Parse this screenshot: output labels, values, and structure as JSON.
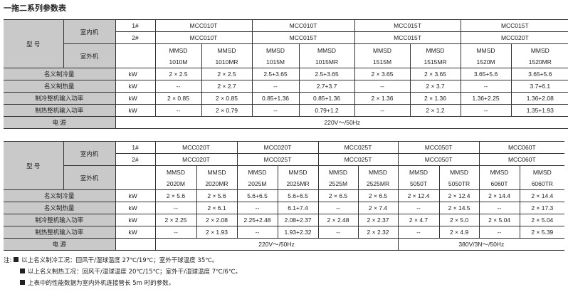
{
  "title": "一拖二系列参数表",
  "labels": {
    "model": "型  号",
    "indoor": "室内机",
    "outdoor": "室外机",
    "unit1": "1#",
    "unit2": "2#",
    "rows": [
      "名义制冷量",
      "名义制热量",
      "制冷整机输入功率",
      "制热整机输入功率"
    ],
    "unit": "kW",
    "power": "电  源"
  },
  "tables": [
    {
      "indoor1": [
        "MCC010T",
        "MCC010T",
        "MCC015T",
        "MCC015T"
      ],
      "indoor2": [
        "MCC010T",
        "MCC015T",
        "MCC015T",
        "MCC020T"
      ],
      "outdoor": [
        [
          "MMSD",
          "1010M"
        ],
        [
          "MMSD",
          "1010MR"
        ],
        [
          "MMSD",
          "1015M"
        ],
        [
          "MMSD",
          "1015MR"
        ],
        [
          "MMSD",
          "1515M"
        ],
        [
          "MMSD",
          "1515MR"
        ],
        [
          "MMSD",
          "1520M"
        ],
        [
          "MMSD",
          "1520MR"
        ]
      ],
      "values": [
        [
          "2 × 2.5",
          "2 × 2.5",
          "2.5+3.65",
          "2.5+3.65",
          "2 × 3.65",
          "2 × 3.65",
          "3.65+5.6",
          "3.65+5.6"
        ],
        [
          "--",
          "2 × 2.7",
          "--",
          "2.7+3.7",
          "--",
          "2 × 3.7",
          "--",
          "3.7+6.1"
        ],
        [
          "2 × 0.85",
          "2 × 0.85",
          "0.85+1.36",
          "0.85+1.36",
          "2 × 1.36",
          "2 × 1.36",
          "1.36+2.25",
          "1.36+2.08"
        ],
        [
          "--",
          "2 × 0.79",
          "--",
          "0.79+1.2",
          "--",
          "2 × 1.2",
          "--",
          "1.35+1.93"
        ]
      ],
      "power": [
        "220V～/50Hz"
      ]
    },
    {
      "indoor1": [
        "MCC020T",
        "MCC020T",
        "MCC025T",
        "MCC050T",
        "MCC060T"
      ],
      "indoor2": [
        "MCC020T",
        "MCC025T",
        "MCC025T",
        "MCC050T",
        "MCC060T"
      ],
      "outdoor": [
        [
          "MMSD",
          "2020M"
        ],
        [
          "MMSD",
          "2020MR"
        ],
        [
          "MMSD",
          "2025M"
        ],
        [
          "MMSD",
          "2025MR"
        ],
        [
          "MMSD",
          "2525M"
        ],
        [
          "MMSD",
          "2525MR"
        ],
        [
          "MMSD",
          "5050T"
        ],
        [
          "MMSD",
          "5050TR"
        ],
        [
          "MMSD",
          "6060T"
        ],
        [
          "MMSD",
          "6060TR"
        ]
      ],
      "values": [
        [
          "2 × 5.6",
          "2 × 5.6",
          "5.6+6.5",
          "5.6+6.5",
          "2 × 6.5",
          "2 × 6.5",
          "2 × 12.4",
          "2 × 12.4",
          "2 × 14.4",
          "2 × 14.4"
        ],
        [
          "--",
          "2 × 6.1",
          "--",
          "6.1+7.4",
          "--",
          "2 × 7.4",
          "--",
          "2 × 14.5",
          "--",
          "2 × 17.3"
        ],
        [
          "2 × 2.25",
          "2 × 2.08",
          "2.25+2.48",
          "2.08+2.37",
          "2 × 2.48",
          "2 × 2.37",
          "2 × 4.7",
          "2 × 5.0",
          "2 × 5.04",
          "2 × 5.04"
        ],
        [
          "--",
          "2 × 1.93",
          "--",
          "1.93+2.32",
          "--",
          "2 × 2.32",
          "--",
          "2 × 4.9",
          "--",
          "2 × 5.39"
        ]
      ],
      "power": [
        "220V～/50Hz",
        "380V/3N～/50Hz"
      ]
    }
  ],
  "notes": {
    "prefix": "注:",
    "items": [
      "以上名义制冷工况：回风干/湿球温度 27℃/19℃；室外干球温度 35℃。",
      "以上名义制热工况：回风干/湿球温度 20℃/15℃；室外干/湿球温度 7℃/6℃。",
      "上表中的性能数据为室内外机连接管长 5m 时的参数。"
    ]
  }
}
